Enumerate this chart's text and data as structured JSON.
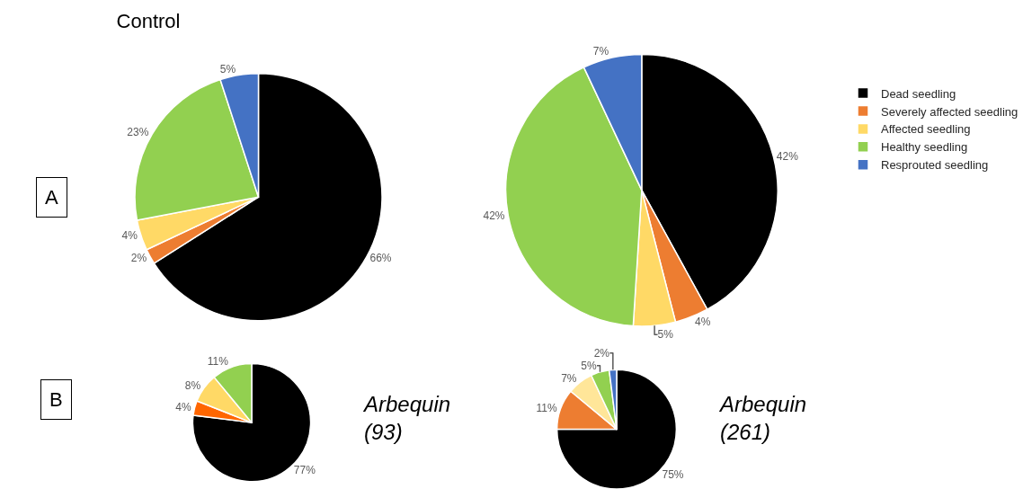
{
  "chart_data": [
    {
      "type": "pie",
      "title": "Control",
      "categories": [
        null,
        null,
        null,
        null,
        null
      ],
      "values": [
        66,
        2,
        4,
        23,
        5
      ],
      "value_labels": [
        "66%",
        "2%",
        "4%",
        "23%",
        "5%"
      ],
      "colors": [
        "#000000",
        "#ed7d31",
        "#ffd966",
        "#92d050",
        "#4472c4"
      ],
      "legend": false,
      "annotations": [
        "A"
      ]
    },
    {
      "type": "pie",
      "categories": [
        "Dead seedling",
        "Severely affected seedling",
        "Affected seedling",
        "Healthy seedling",
        "Resprouted seedling"
      ],
      "values": [
        42,
        4,
        5,
        42,
        7
      ],
      "value_labels": [
        "42%",
        "4%",
        "5%",
        "42%",
        "7%"
      ],
      "colors": [
        "#000000",
        "#ed7d31",
        "#ffd966",
        "#92d050",
        "#4472c4"
      ],
      "legend": "right"
    },
    {
      "type": "pie",
      "categories": [
        null,
        null,
        null,
        null
      ],
      "values": [
        77,
        4,
        8,
        11
      ],
      "value_labels": [
        "77%",
        "4%",
        "8%",
        "11%"
      ],
      "colors": [
        "#000000",
        "#ff6600",
        "#ffd966",
        "#92d050"
      ],
      "legend": false,
      "annotations": [
        "B",
        "Arbequin (93)"
      ]
    },
    {
      "type": "pie",
      "categories": [
        null,
        null,
        null,
        null,
        null
      ],
      "values": [
        75,
        11,
        7,
        5,
        2
      ],
      "value_labels": [
        "75%",
        "11%",
        "7%",
        "5%",
        "2%"
      ],
      "colors": [
        "#000000",
        "#ed7d31",
        "#ffe699",
        "#92d050",
        "#4472c4"
      ],
      "legend": false,
      "annotations": [
        "Arbequin (261)"
      ]
    }
  ]
}
